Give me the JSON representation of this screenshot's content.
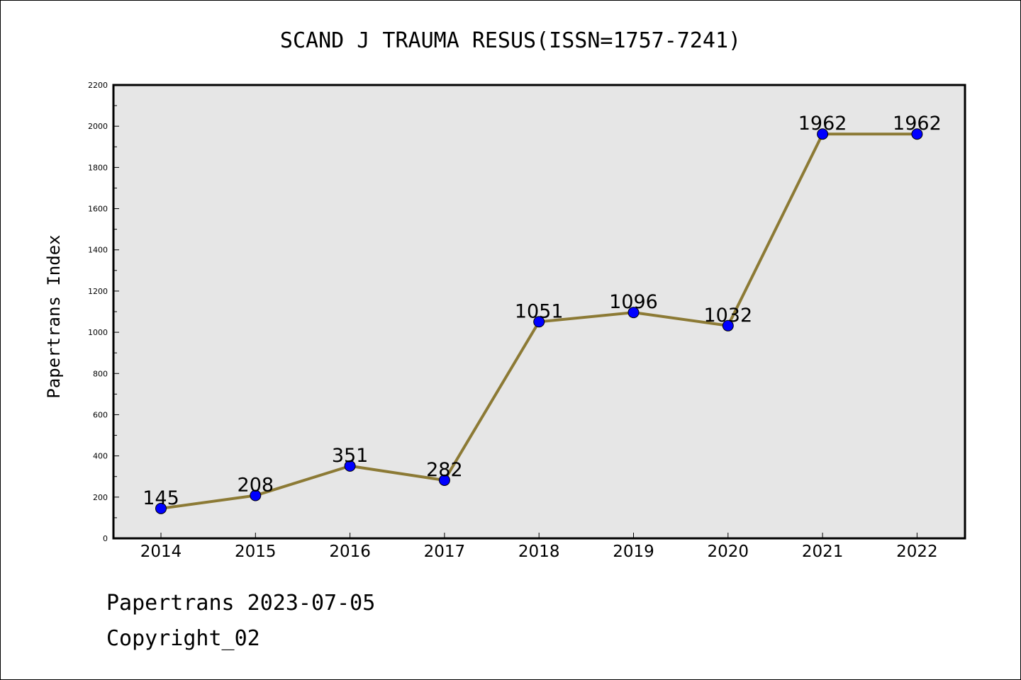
{
  "footer": {
    "line1": "Papertrans 2023-07-05",
    "line2": "Copyright_02"
  },
  "chart_data": {
    "type": "line",
    "title": "SCAND J TRAUMA RESUS(ISSN=1757-7241)",
    "xlabel": "",
    "ylabel": "Papertrans Index",
    "categories": [
      "2014",
      "2015",
      "2016",
      "2017",
      "2018",
      "2019",
      "2020",
      "2021",
      "2022"
    ],
    "series": [
      {
        "values": [
          145,
          208,
          351,
          282,
          1051,
          1096,
          1032,
          1962,
          1962
        ],
        "line_color": "#8c7a35",
        "marker_color": "#0000ff",
        "data_labels": [
          "145",
          "208",
          "351",
          "282",
          "1051",
          "1096",
          "1032",
          "1962",
          "1962"
        ]
      }
    ],
    "ylim": [
      0,
      2200
    ],
    "y_ticks": [
      0,
      200,
      400,
      600,
      800,
      1000,
      1200,
      1400,
      1600,
      1800,
      2000,
      2200
    ],
    "y_tick_labels": [
      "0",
      "200",
      "400",
      "600",
      "800",
      "1000",
      "1200",
      "1400",
      "1600",
      "1800",
      "2000",
      "2200"
    ],
    "grid": false,
    "legend": "none",
    "plot_background": "#e6e6e6"
  }
}
